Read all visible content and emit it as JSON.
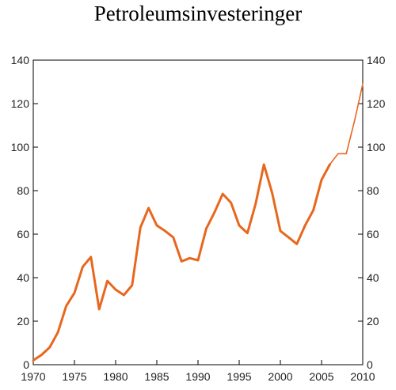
{
  "chart_data": {
    "type": "line",
    "title": "Petroleumsinvesteringer",
    "xlabel": "",
    "ylabel": "",
    "xlim": [
      1970,
      2010
    ],
    "ylim": [
      0,
      140
    ],
    "x_ticks": [
      1970,
      1975,
      1980,
      1985,
      1990,
      1995,
      2000,
      2005,
      2010
    ],
    "y_ticks": [
      0,
      20,
      40,
      60,
      80,
      100,
      120,
      140
    ],
    "y_axis_both_sides": true,
    "grid": false,
    "series": [
      {
        "color": "#e8671e",
        "line": "thick",
        "x": [
          1970,
          1971,
          1972,
          1973,
          1974,
          1975,
          1976,
          1977,
          1978,
          1979,
          1980,
          1981,
          1982,
          1983,
          1984,
          1985,
          1986,
          1987,
          1988,
          1989,
          1990,
          1991,
          1992,
          1993,
          1994,
          1995,
          1996,
          1997,
          1998,
          1999,
          2000,
          2001,
          2002,
          2003,
          2004,
          2005,
          2006
        ],
        "values": [
          2,
          4.5,
          8,
          15,
          27,
          33,
          45,
          49.5,
          25.5,
          38.5,
          34.5,
          32,
          36.5,
          63,
          72,
          64,
          61.5,
          58.5,
          47.5,
          49,
          48,
          62.5,
          70,
          78.5,
          74.5,
          64,
          60.5,
          74,
          92,
          79,
          61.5,
          58.5,
          55.5,
          64,
          71,
          85,
          92
        ]
      },
      {
        "color": "#e8671e",
        "line": "thin",
        "x": [
          2006,
          2007,
          2008,
          2009,
          2010
        ],
        "values": [
          92,
          97,
          97,
          112,
          129
        ]
      }
    ]
  }
}
